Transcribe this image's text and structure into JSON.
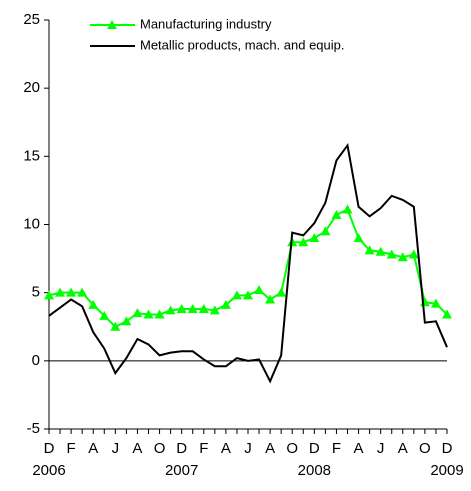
{
  "chart_data": {
    "type": "line",
    "categories": [
      "D",
      null,
      "F",
      null,
      "A",
      null,
      "J",
      null,
      "A",
      null,
      "O",
      null,
      "D",
      null,
      "F",
      null,
      "A",
      null,
      "J",
      null,
      "A",
      null,
      "O",
      null,
      "D",
      null,
      "F",
      null,
      "A",
      null,
      "J",
      null,
      "A",
      null,
      "O",
      null,
      "D"
    ],
    "category_years": [
      "2006",
      null,
      null,
      null,
      null,
      null,
      null,
      null,
      null,
      null,
      null,
      null,
      "2007",
      null,
      null,
      null,
      null,
      null,
      null,
      null,
      null,
      null,
      null,
      null,
      "2008",
      null,
      null,
      null,
      null,
      null,
      null,
      null,
      null,
      null,
      null,
      null,
      "2009"
    ],
    "series": [
      {
        "name": "Manufacturing industry",
        "color": "#00ff00",
        "marker": "triangle",
        "values": [
          4.8,
          5.0,
          5.0,
          5.0,
          4.1,
          3.3,
          2.5,
          2.9,
          3.5,
          3.4,
          3.4,
          3.7,
          3.8,
          3.8,
          3.8,
          3.7,
          4.1,
          4.8,
          4.8,
          5.2,
          4.5,
          5.0,
          8.7,
          8.7,
          9.0,
          9.5,
          10.7,
          11.1,
          9.0,
          8.1,
          8.0,
          7.8,
          7.6,
          7.8,
          4.3,
          4.2,
          3.4
        ]
      },
      {
        "name": "Metallic products, mach. and equip.",
        "color": "#000000",
        "marker": null,
        "values": [
          3.3,
          3.9,
          4.5,
          4.0,
          2.1,
          0.9,
          -0.9,
          0.2,
          1.6,
          1.2,
          0.4,
          0.6,
          0.7,
          0.7,
          0.1,
          -0.4,
          -0.4,
          0.2,
          0.0,
          0.1,
          -1.5,
          0.4,
          9.4,
          9.2,
          10.1,
          11.6,
          14.7,
          15.8,
          11.3,
          10.6,
          11.2,
          12.1,
          11.8,
          11.3,
          2.8,
          2.9,
          1.0
        ]
      }
    ],
    "ylim": [
      -5,
      25
    ],
    "yticks": [
      -5,
      0,
      5,
      10,
      15,
      20,
      25
    ],
    "zero_line": true
  }
}
